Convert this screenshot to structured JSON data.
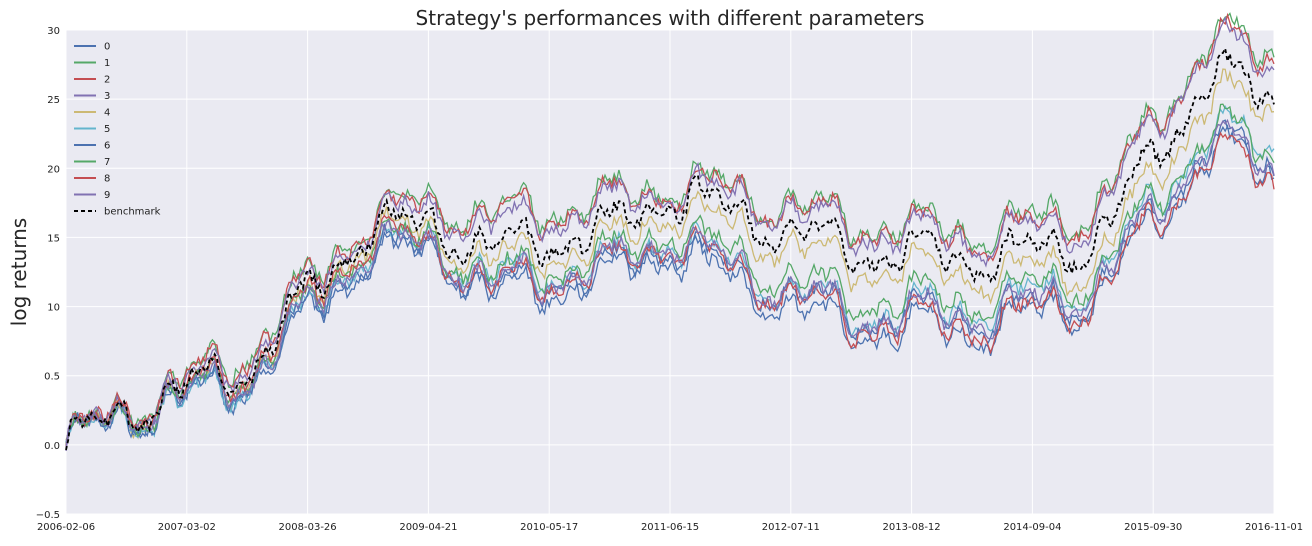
{
  "chart_data": {
    "type": "line",
    "title": "Strategy's performances with different parameters",
    "xlabel": "",
    "ylabel": "log returns",
    "x_ticks": [
      "2006-02-06",
      "2007-03-02",
      "2008-03-26",
      "2009-04-21",
      "2010-05-17",
      "2011-06-15",
      "2012-07-11",
      "2013-08-12",
      "2014-09-04",
      "2015-09-30",
      "2016-11-01"
    ],
    "y_ticks": [
      "−0.5",
      "0.0",
      "0.5",
      "10",
      "15",
      "20",
      "25",
      "30"
    ],
    "y_tick_values": [
      -0.5,
      0.0,
      0.5,
      1.0,
      1.5,
      2.0,
      2.5,
      3.0
    ],
    "ylim": [
      -0.5,
      3.0
    ],
    "grid": true,
    "legend_position": "top-left",
    "x": [
      0,
      0.5,
      1.5,
      2.5,
      3.1,
      3.5,
      4.5,
      5.0,
      5.5,
      6.5,
      7.6,
      8.5,
      9.5,
      10.5
    ],
    "baseline": [
      0.0,
      0.25,
      0.55,
      1.58,
      1.58,
      1.4,
      1.55,
      1.82,
      1.68,
      1.4,
      1.35,
      1.45,
      2.7,
      2.25
    ],
    "series": [
      {
        "name": "0",
        "color": "#4c72b0",
        "offsets": [
          0.0,
          -0.03,
          -0.12,
          -0.22,
          -0.2,
          -0.32,
          -0.35,
          -0.4,
          -0.5,
          -0.58,
          -0.52,
          -0.42,
          -0.55,
          -0.55
        ],
        "dashed": false
      },
      {
        "name": "1",
        "color": "#55a868",
        "offsets": [
          0.0,
          0.02,
          0.12,
          0.08,
          0.18,
          0.25,
          0.23,
          0.08,
          0.18,
          0.22,
          0.2,
          0.25,
          0.28,
          0.35
        ],
        "dashed": false
      },
      {
        "name": "2",
        "color": "#c44e52",
        "offsets": [
          0.0,
          0.03,
          0.1,
          0.06,
          0.16,
          0.22,
          0.2,
          0.06,
          0.15,
          0.18,
          0.16,
          0.21,
          0.25,
          0.27
        ],
        "dashed": false
      },
      {
        "name": "3",
        "color": "#8172b2",
        "offsets": [
          0.0,
          0.01,
          0.06,
          0.03,
          0.12,
          0.18,
          0.16,
          0.04,
          0.12,
          0.15,
          0.13,
          0.18,
          0.22,
          0.2
        ],
        "dashed": false
      },
      {
        "name": "4",
        "color": "#ccb974",
        "offsets": [
          0.0,
          -0.02,
          -0.05,
          -0.04,
          -0.08,
          -0.08,
          -0.1,
          -0.12,
          -0.1,
          -0.1,
          -0.12,
          -0.15,
          -0.15,
          -0.05
        ],
        "dashed": false
      },
      {
        "name": "5",
        "color": "#64b5cd",
        "offsets": [
          0.0,
          -0.05,
          -0.1,
          -0.15,
          -0.15,
          -0.2,
          -0.25,
          -0.3,
          -0.38,
          -0.45,
          -0.35,
          -0.28,
          -0.4,
          -0.35
        ],
        "dashed": false
      },
      {
        "name": "6",
        "color": "#4c72b0",
        "offsets": [
          0.0,
          -0.04,
          -0.08,
          -0.18,
          -0.18,
          -0.28,
          -0.3,
          -0.34,
          -0.42,
          -0.48,
          -0.42,
          -0.36,
          -0.48,
          -0.5
        ],
        "dashed": false
      },
      {
        "name": "7",
        "color": "#55a868",
        "offsets": [
          0.0,
          -0.02,
          -0.04,
          -0.1,
          -0.12,
          -0.18,
          -0.2,
          -0.24,
          -0.3,
          -0.35,
          -0.3,
          -0.24,
          -0.38,
          -0.42
        ],
        "dashed": false
      },
      {
        "name": "8",
        "color": "#c44e52",
        "offsets": [
          0.0,
          0.0,
          -0.02,
          -0.08,
          -0.16,
          -0.26,
          -0.28,
          -0.32,
          -0.4,
          -0.52,
          -0.48,
          -0.4,
          -0.55,
          -0.65
        ],
        "dashed": false
      },
      {
        "name": "9",
        "color": "#8172b2",
        "offsets": [
          0.0,
          -0.01,
          -0.06,
          -0.14,
          -0.16,
          -0.24,
          -0.27,
          -0.3,
          -0.38,
          -0.46,
          -0.4,
          -0.33,
          -0.46,
          -0.55
        ],
        "dashed": false
      },
      {
        "name": "benchmark",
        "color": "#000000",
        "offsets": [
          0.0,
          0.0,
          0.0,
          0.0,
          0.0,
          0.0,
          0.0,
          0.0,
          0.0,
          0.0,
          0.0,
          0.0,
          0.0,
          0.0
        ],
        "dashed": true
      }
    ],
    "colors": {
      "plot_bg": "#eaeaf2",
      "grid": "#ffffff"
    }
  }
}
